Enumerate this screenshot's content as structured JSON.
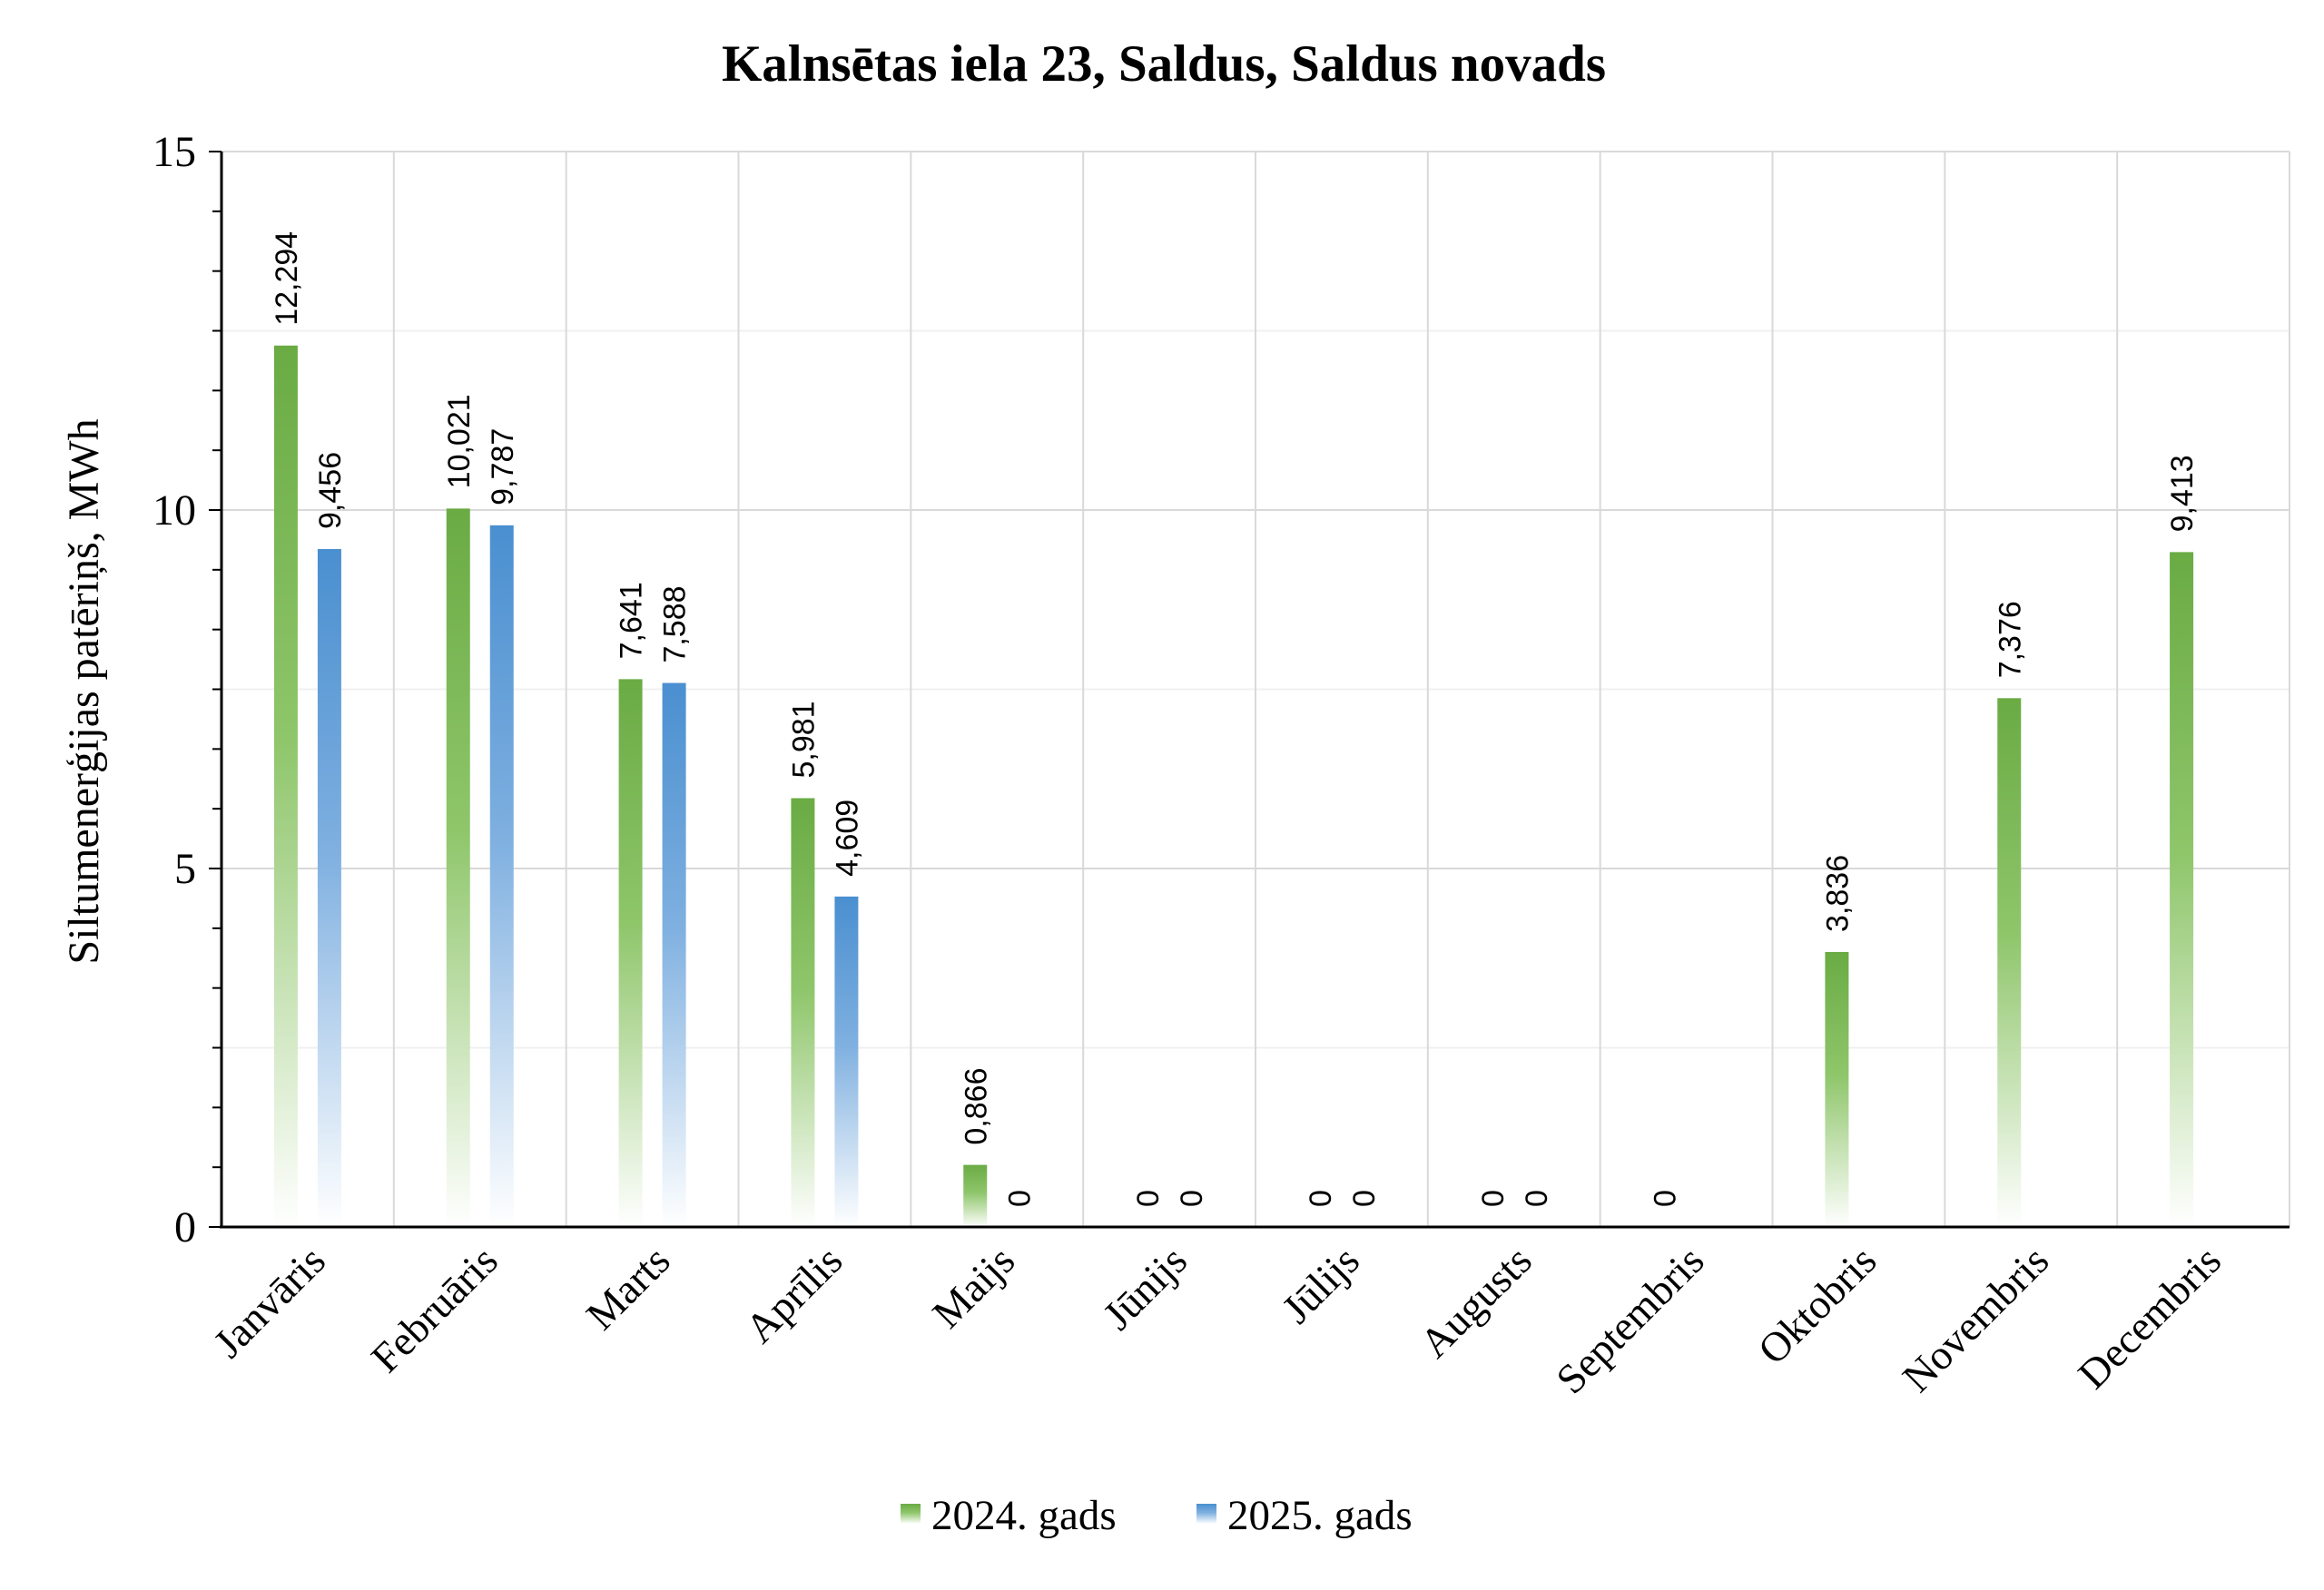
{
  "chart_data": {
    "type": "bar",
    "title": "Kalnsētas iela 23, Saldus, Saldus novads",
    "ylabel": "Siltumenerģijas patēriņš, MWh",
    "xlabel": "",
    "ylim": [
      0,
      15
    ],
    "yticks": [
      0,
      5,
      10,
      15
    ],
    "grid": true,
    "legend_position": "bottom",
    "categories": [
      "Janvāris",
      "Februāris",
      "Marts",
      "Aprīlis",
      "Maijs",
      "Jūnijs",
      "Jūlijs",
      "Augusts",
      "Septembris",
      "Oktobris",
      "Novembris",
      "Decembris"
    ],
    "series": [
      {
        "name": "2024. gads",
        "color": "#6aab44",
        "values": [
          12.294,
          10.021,
          7.641,
          5.981,
          0.866,
          0,
          0,
          0,
          0,
          3.836,
          7.376,
          9.413
        ],
        "labels": [
          "12,294",
          "10,021",
          "7,641",
          "5,981",
          "0,866",
          "0",
          "0",
          "0",
          "0",
          "3,836",
          "7,376",
          "9,413"
        ]
      },
      {
        "name": "2025. gads",
        "color": "#4a8fd0",
        "values": [
          9.456,
          9.787,
          7.588,
          4.609,
          0,
          0,
          0,
          0,
          null,
          null,
          null,
          null
        ],
        "labels": [
          "9,456",
          "9,787",
          "7,588",
          "4,609",
          "0",
          "0",
          "0",
          "0",
          null,
          null,
          null,
          null
        ]
      }
    ]
  }
}
